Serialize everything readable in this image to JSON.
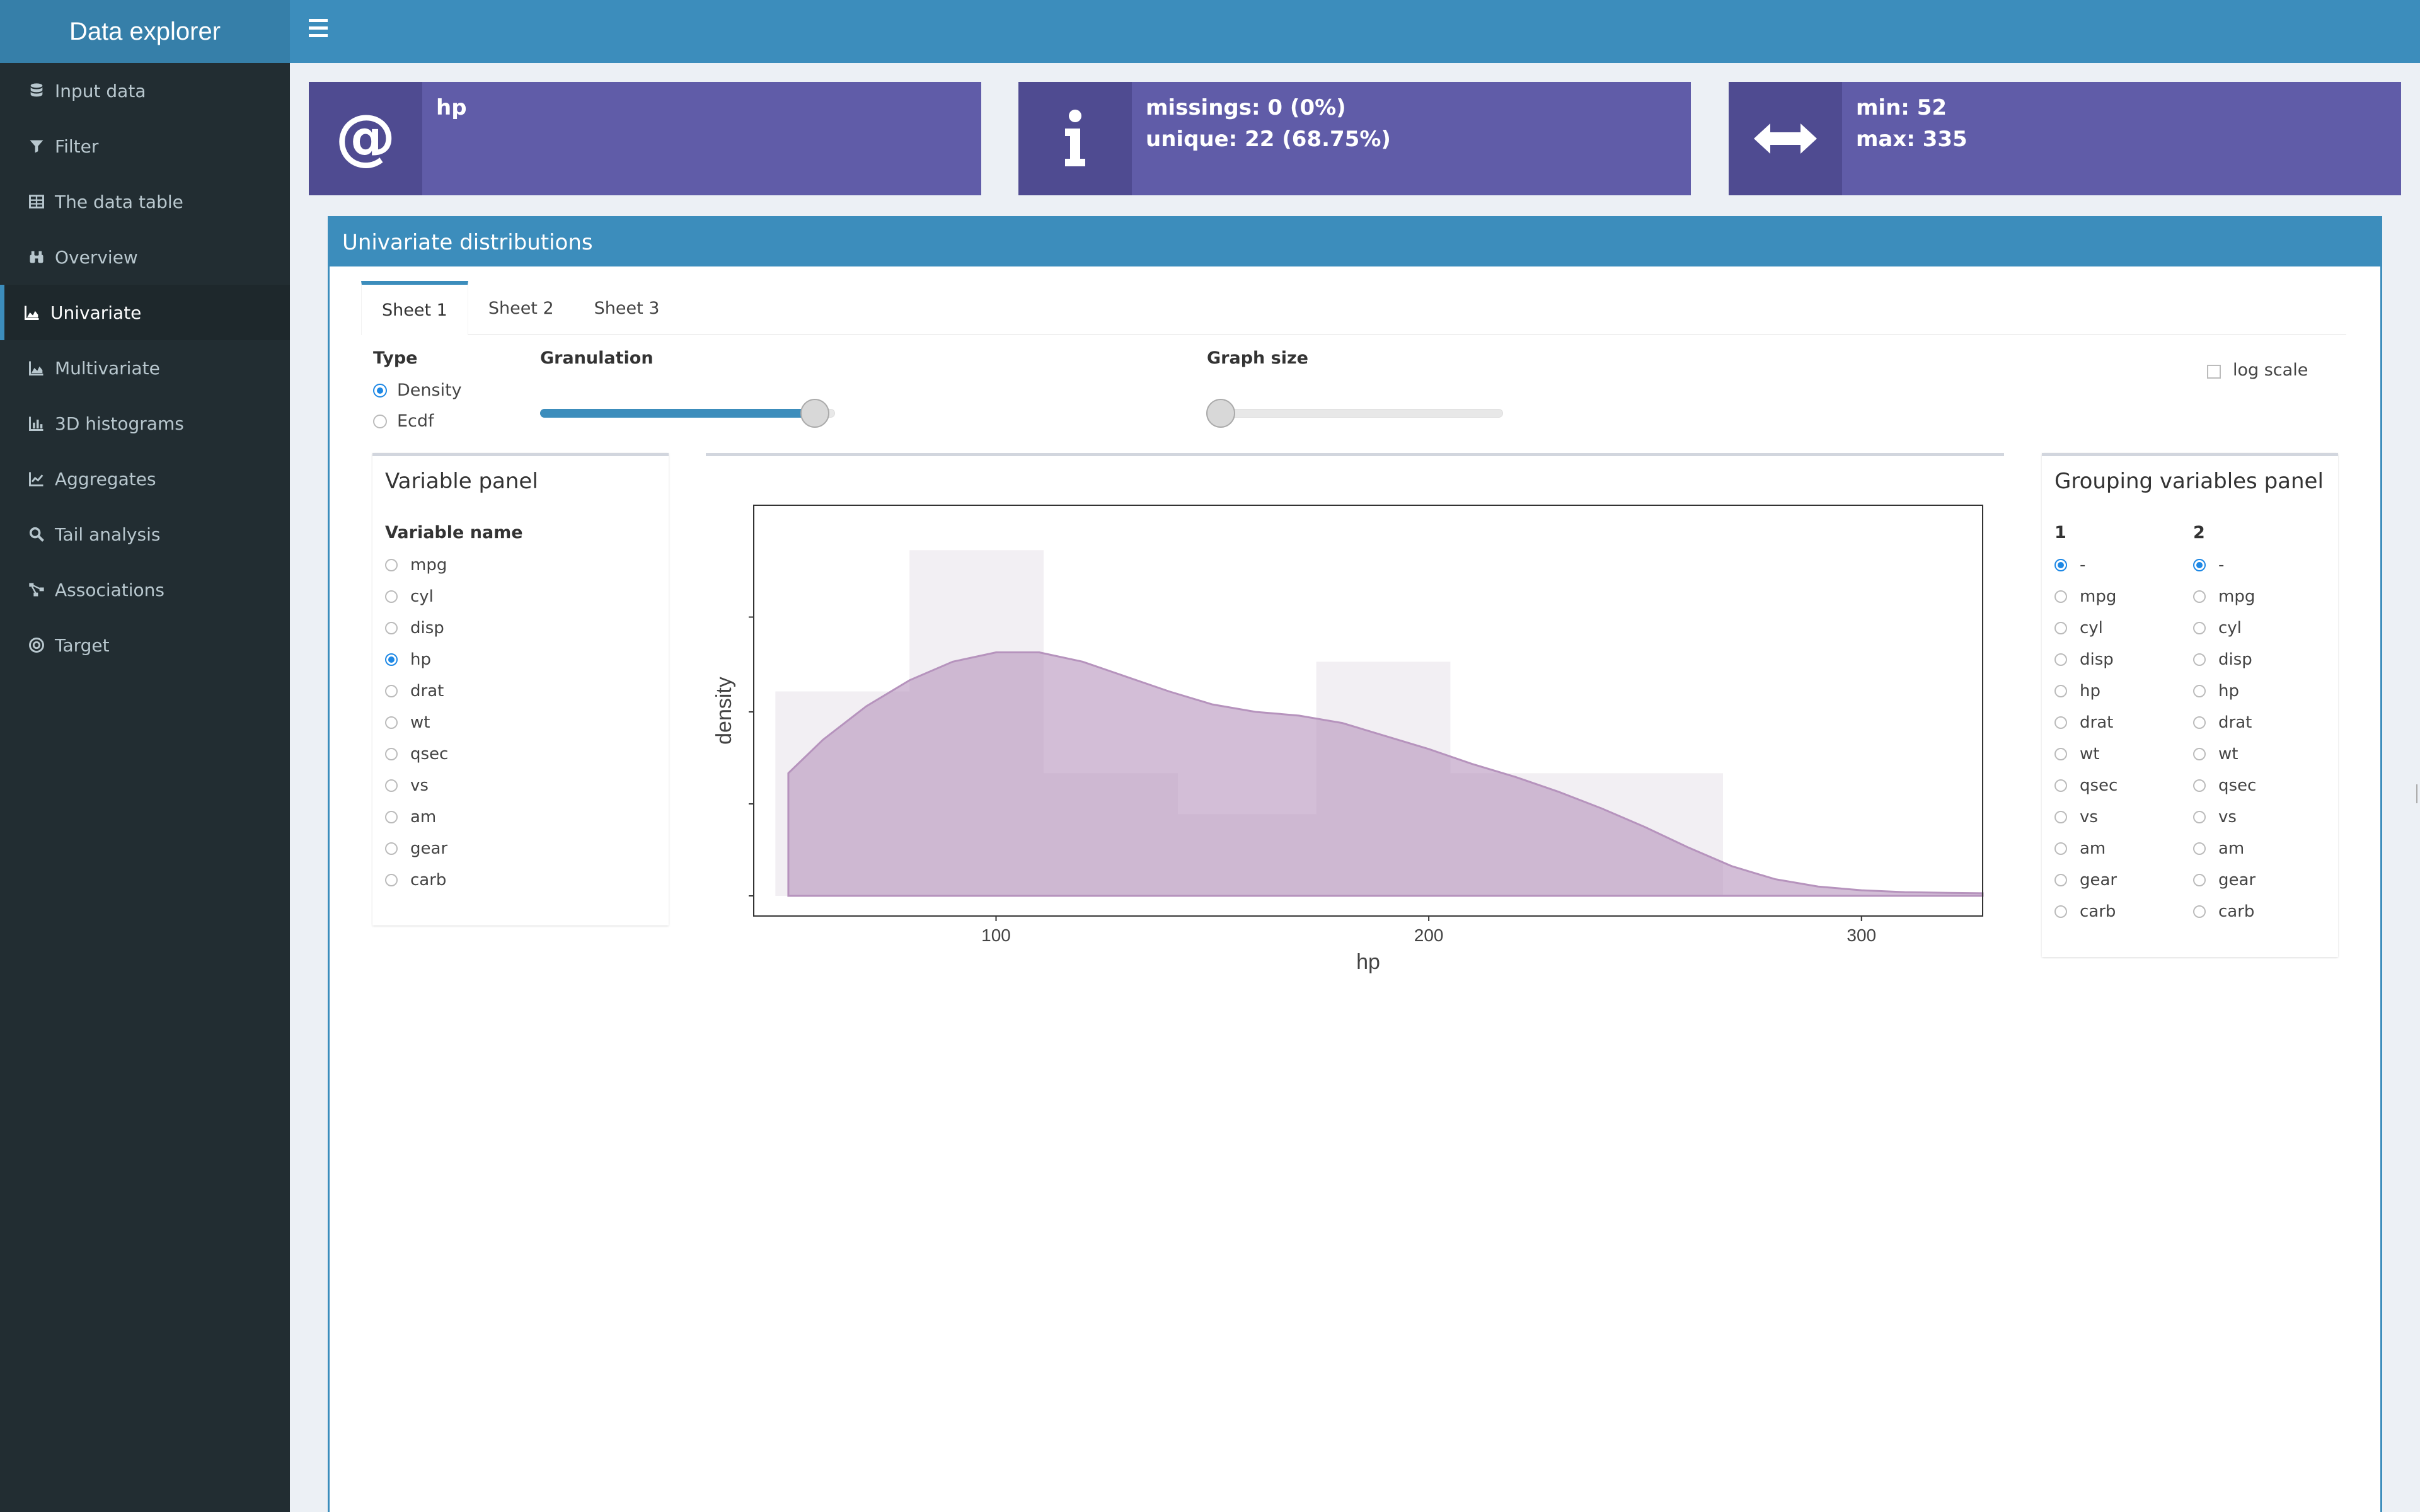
{
  "app": {
    "title": "Data explorer"
  },
  "sidebar": {
    "items": [
      {
        "label": "Input data",
        "icon": "database-icon"
      },
      {
        "label": "Filter",
        "icon": "filter-icon"
      },
      {
        "label": "The data table",
        "icon": "table-icon"
      },
      {
        "label": "Overview",
        "icon": "binoculars-icon"
      },
      {
        "label": "Univariate",
        "icon": "area-chart-icon",
        "active": true
      },
      {
        "label": "Multivariate",
        "icon": "area-chart-icon"
      },
      {
        "label": "3D histograms",
        "icon": "bar-chart-icon"
      },
      {
        "label": "Aggregates",
        "icon": "line-chart-icon"
      },
      {
        "label": "Tail analysis",
        "icon": "search-icon"
      },
      {
        "label": "Associations",
        "icon": "network-icon"
      },
      {
        "label": "Target",
        "icon": "target-icon"
      }
    ]
  },
  "infoboxes": {
    "name": {
      "icon": "at-icon",
      "line1": "hp"
    },
    "stats": {
      "icon": "info-icon",
      "line1": "missings: 0 (0%)",
      "line2": "unique: 22 (68.75%)"
    },
    "range": {
      "icon": "arrows-h-icon",
      "line1": "min: 52",
      "line2": "max: 335"
    }
  },
  "main": {
    "title": "Univariate distributions",
    "tabs": [
      "Sheet 1",
      "Sheet 2",
      "Sheet 3"
    ],
    "active_tab": 0,
    "type": {
      "label": "Type",
      "options": [
        "Density",
        "Ecdf"
      ],
      "selected": "Density"
    },
    "granulation": {
      "label": "Granulation",
      "level": 0.95
    },
    "graph_size": {
      "label": "Graph size",
      "level": 0.0
    },
    "log_scale": {
      "label": "log scale",
      "checked": false
    }
  },
  "variable_panel": {
    "title": "Variable panel",
    "header": "Variable name",
    "options": [
      "mpg",
      "cyl",
      "disp",
      "hp",
      "drat",
      "wt",
      "qsec",
      "vs",
      "am",
      "gear",
      "carb"
    ],
    "selected": "hp"
  },
  "grouping_panel": {
    "title": "Grouping variables panel",
    "col1_header": "1",
    "col2_header": "2",
    "options": [
      "-",
      "mpg",
      "cyl",
      "disp",
      "hp",
      "drat",
      "wt",
      "qsec",
      "vs",
      "am",
      "gear",
      "carb"
    ],
    "col1_selected": "-",
    "col2_selected": "-"
  },
  "chart_data": {
    "type": "area",
    "xlabel": "hp",
    "ylabel": "density",
    "xlim": [
      44,
      328
    ],
    "x_ticks": [
      100,
      200,
      300
    ],
    "ylim": [
      0,
      1.0
    ],
    "histogram": {
      "bins": [
        {
          "x0": 49,
          "x1": 80,
          "height": 0.55
        },
        {
          "x0": 80,
          "x1": 111,
          "height": 0.93
        },
        {
          "x0": 111,
          "x1": 142,
          "height": 0.33
        },
        {
          "x0": 142,
          "x1": 174,
          "height": 0.22
        },
        {
          "x0": 174,
          "x1": 205,
          "height": 0.63
        },
        {
          "x0": 205,
          "x1": 268,
          "height": 0.33
        }
      ],
      "color": "#f2eff3"
    },
    "density": {
      "x": [
        52,
        60,
        70,
        80,
        90,
        100,
        110,
        120,
        130,
        140,
        150,
        160,
        170,
        180,
        190,
        200,
        210,
        220,
        230,
        240,
        250,
        260,
        270,
        280,
        290,
        300,
        310,
        320,
        328
      ],
      "y": [
        0.33,
        0.42,
        0.51,
        0.58,
        0.63,
        0.655,
        0.655,
        0.63,
        0.59,
        0.55,
        0.515,
        0.495,
        0.485,
        0.465,
        0.43,
        0.395,
        0.355,
        0.32,
        0.28,
        0.235,
        0.185,
        0.13,
        0.08,
        0.045,
        0.025,
        0.015,
        0.01,
        0.008,
        0.007
      ],
      "color": "#b693bd"
    }
  }
}
